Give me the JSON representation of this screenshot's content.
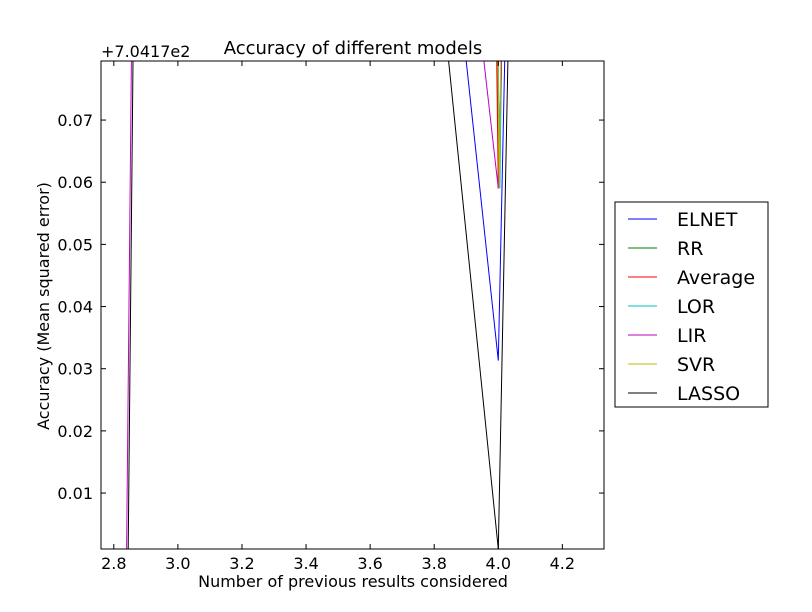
{
  "chart_data": {
    "type": "line",
    "title": "Accuracy of different models",
    "xlabel": "Number of previous results considered",
    "ylabel": "Accuracy (Mean squared error)",
    "offset_label": "+7.0417e2",
    "xlim": [
      2.76,
      4.33
    ],
    "ylim": [
      0.001,
      0.0795
    ],
    "x_ticks": [
      {
        "value": 2.8,
        "label": "2.8"
      },
      {
        "value": 3.0,
        "label": "3.0"
      },
      {
        "value": 3.2,
        "label": "3.2"
      },
      {
        "value": 3.4,
        "label": "3.4"
      },
      {
        "value": 3.6,
        "label": "3.6"
      },
      {
        "value": 3.8,
        "label": "3.8"
      },
      {
        "value": 4.0,
        "label": "4.0"
      },
      {
        "value": 4.2,
        "label": "4.2"
      }
    ],
    "y_ticks": [
      {
        "value": 0.01,
        "label": "0.01"
      },
      {
        "value": 0.02,
        "label": "0.02"
      },
      {
        "value": 0.03,
        "label": "0.03"
      },
      {
        "value": 0.04,
        "label": "0.04"
      },
      {
        "value": 0.05,
        "label": "0.05"
      },
      {
        "value": 0.06,
        "label": "0.06"
      },
      {
        "value": 0.07,
        "label": "0.07"
      }
    ],
    "legend_position": "outside-right",
    "series": [
      {
        "name": "ELNET",
        "color": "#0000ff",
        "segments": [
          [
            [
              3.9,
              0.0795
            ],
            [
              4.0,
              0.0313
            ],
            [
              4.02,
              0.0795
            ]
          ]
        ]
      },
      {
        "name": "RR",
        "color": "#008000",
        "segments": [
          [
            [
              3.998,
              0.0795
            ],
            [
              4.0,
              0.059
            ],
            [
              4.01,
              0.0795
            ]
          ]
        ]
      },
      {
        "name": "Average",
        "color": "#ff0000",
        "segments": [
          [
            [
              3.995,
              0.0795
            ],
            [
              4.0,
              0.059
            ],
            [
              4.01,
              0.0795
            ]
          ]
        ]
      },
      {
        "name": "LOR",
        "color": "#00bfbf",
        "segments": [
          [
            [
              4.0,
              0.0795
            ],
            [
              4.005,
              0.059
            ],
            [
              4.01,
              0.0795
            ]
          ]
        ]
      },
      {
        "name": "LIR",
        "color": "#bf00bf",
        "segments": [
          [
            [
              2.84,
              0.001
            ],
            [
              2.855,
              0.0795
            ]
          ],
          [
            [
              3.955,
              0.0795
            ],
            [
              4.0,
              0.059
            ],
            [
              4.01,
              0.0795
            ]
          ]
        ]
      },
      {
        "name": "SVR",
        "color": "#bfbf00",
        "segments": [
          [
            [
              3.999,
              0.0795
            ],
            [
              4.003,
              0.059
            ],
            [
              4.008,
              0.0795
            ]
          ]
        ]
      },
      {
        "name": "LASSO",
        "color": "#000000",
        "segments": [
          [
            [
              2.845,
              0.001
            ],
            [
              2.86,
              0.0795
            ]
          ],
          [
            [
              3.845,
              0.0795
            ],
            [
              4.0,
              0.001
            ],
            [
              4.03,
              0.0795
            ]
          ]
        ]
      }
    ]
  }
}
